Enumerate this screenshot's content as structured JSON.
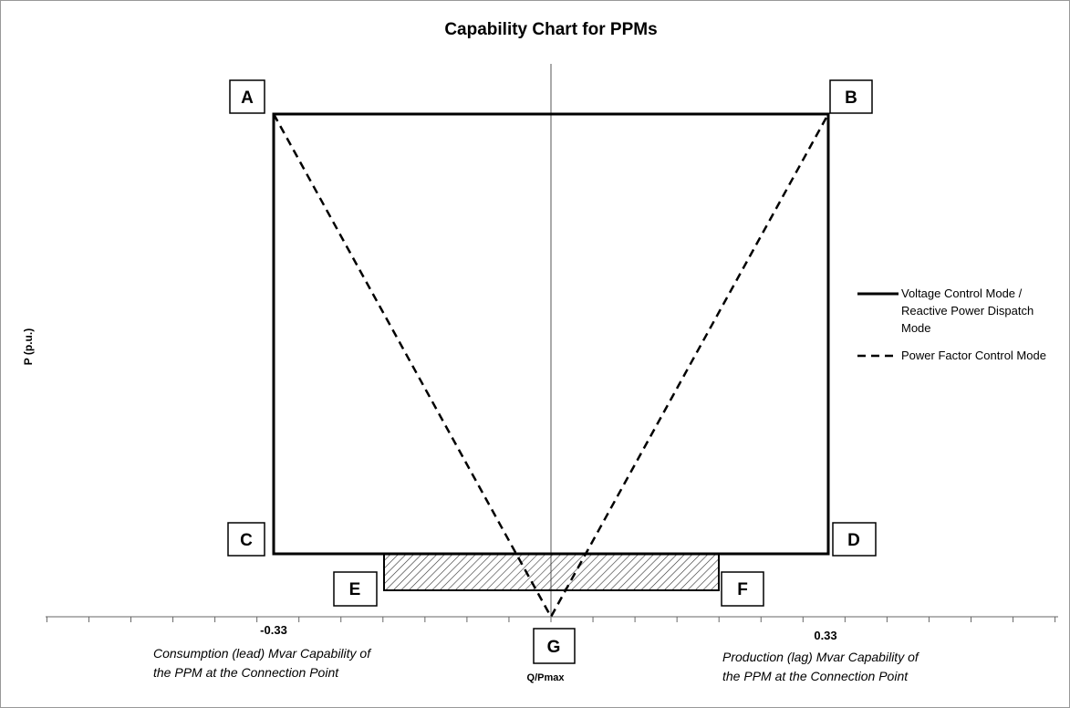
{
  "title": "Capability Chart for PPMs",
  "y_axis_label": "P (p.u.)",
  "x_axis_label": "Q/Pmax",
  "x_tick_labels": [
    "-0.33",
    "0.33"
  ],
  "annotations": {
    "left": [
      "Consumption (lead) Mvar Capability of",
      "the PPM at the Connection Point"
    ],
    "right": [
      "Production (lag) Mvar Capability of",
      "the PPM at the Connection Point"
    ]
  },
  "points": [
    "A",
    "B",
    "C",
    "D",
    "E",
    "F",
    "G"
  ],
  "legend": [
    {
      "lines": [
        "Voltage Control Mode /",
        "Reactive Power Dispatch",
        "Mode"
      ]
    },
    {
      "lines": [
        "Power Factor Control Mode"
      ]
    }
  ]
}
